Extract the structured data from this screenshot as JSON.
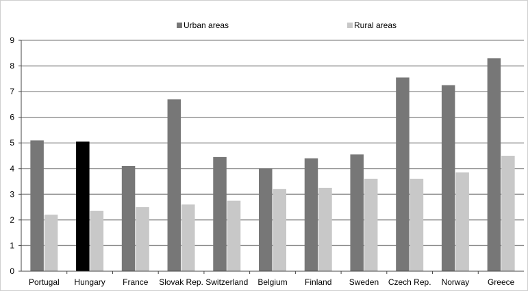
{
  "chart_data": {
    "type": "bar",
    "title": "",
    "xlabel": "",
    "ylabel": "",
    "ylim": [
      0,
      9
    ],
    "yticks": [
      "0",
      "1",
      "2",
      "3",
      "4",
      "5",
      "6",
      "7",
      "8",
      "9"
    ],
    "grid": true,
    "legend_position": "top",
    "categories": [
      "Portugal",
      "Hungary",
      "France",
      "Slovak Rep.",
      "Switzerland",
      "Belgium",
      "Finland",
      "Sweden",
      "Czech Rep.",
      "Norway",
      "Greece"
    ],
    "highlight_category": "Hungary",
    "series": [
      {
        "name": "Urban areas",
        "color": "#777777",
        "values": [
          5.1,
          5.05,
          4.1,
          6.7,
          4.45,
          4.0,
          4.4,
          4.55,
          7.55,
          7.25,
          8.3
        ]
      },
      {
        "name": "Rural areas",
        "color": "#c8c8c8",
        "values": [
          2.2,
          2.35,
          2.5,
          2.6,
          2.75,
          3.2,
          3.25,
          3.6,
          3.6,
          3.85,
          4.5
        ]
      }
    ],
    "highlight_color": "#000000"
  }
}
